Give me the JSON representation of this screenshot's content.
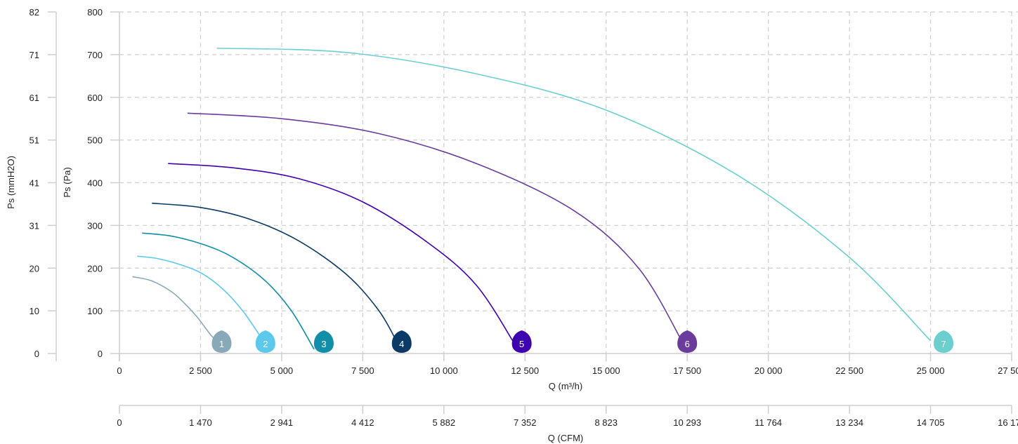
{
  "chart_data": {
    "type": "line",
    "x_axis": {
      "label": "Q (m³/h)",
      "range": [
        0,
        27500
      ],
      "ticks": [
        0,
        2500,
        5000,
        7500,
        10000,
        12500,
        15000,
        17500,
        20000,
        22500,
        25000,
        27500
      ],
      "tick_labels": [
        "0",
        "2 500",
        "5 000",
        "7 500",
        "10 000",
        "12 500",
        "15 000",
        "17 500",
        "20 000",
        "22 500",
        "25 000",
        "27 500"
      ]
    },
    "x2_axis": {
      "label": "Q (CFM)",
      "tick_labels": [
        "0",
        "1 470",
        "2 941",
        "4 412",
        "5 882",
        "7 352",
        "8 823",
        "10 293",
        "11 764",
        "13 234",
        "14 705",
        "16 175"
      ]
    },
    "y_axis": {
      "label": "Ps (Pa)",
      "range": [
        0,
        800
      ],
      "ticks": [
        0,
        100,
        200,
        300,
        400,
        500,
        600,
        700,
        800
      ],
      "tick_labels": [
        "0",
        "100",
        "200",
        "300",
        "400",
        "500",
        "600",
        "700",
        "800"
      ]
    },
    "y2_axis": {
      "label": "Ps (mmH2O)",
      "tick_labels": [
        "0",
        "10",
        "20",
        "31",
        "41",
        "51",
        "61",
        "71",
        "82"
      ]
    },
    "grid": true,
    "series": [
      {
        "marker": "1",
        "color": "#8aa9b8",
        "marker_x": 3150,
        "x": [
          400,
          1000,
          1600,
          2000,
          2400,
          2800,
          3100
        ],
        "y": [
          180,
          170,
          145,
          118,
          85,
          45,
          20
        ]
      },
      {
        "marker": "2",
        "color": "#5bc8ec",
        "marker_x": 4500,
        "x": [
          550,
          1200,
          2000,
          2600,
          3200,
          3800,
          4300
        ],
        "y": [
          228,
          222,
          205,
          185,
          150,
          100,
          45
        ]
      },
      {
        "marker": "3",
        "color": "#128fa8",
        "marker_x": 6300,
        "x": [
          700,
          1600,
          2600,
          3500,
          4500,
          5300,
          6000
        ],
        "y": [
          282,
          275,
          255,
          225,
          170,
          100,
          10
        ]
      },
      {
        "marker": "4",
        "color": "#0a3a66",
        "marker_x": 8700,
        "x": [
          1000,
          2500,
          4000,
          5500,
          7000,
          8000,
          8600
        ],
        "y": [
          352,
          342,
          315,
          265,
          185,
          100,
          20
        ]
      },
      {
        "marker": "5",
        "color": "#3f00b0",
        "marker_x": 12400,
        "x": [
          1500,
          3500,
          5500,
          7500,
          9500,
          11000,
          12200
        ],
        "y": [
          445,
          435,
          410,
          355,
          260,
          160,
          20
        ]
      },
      {
        "marker": "6",
        "color": "#6a3c9c",
        "marker_x": 17500,
        "x": [
          2100,
          5000,
          8000,
          11000,
          14000,
          16000,
          17400
        ],
        "y": [
          563,
          550,
          515,
          445,
          335,
          200,
          20
        ]
      },
      {
        "marker": "7",
        "color": "#6ccfcf",
        "marker_x": 25400,
        "x": [
          3000,
          7000,
          11000,
          15000,
          19000,
          22500,
          25000
        ],
        "y": [
          715,
          705,
          655,
          570,
          420,
          225,
          30
        ]
      }
    ]
  }
}
